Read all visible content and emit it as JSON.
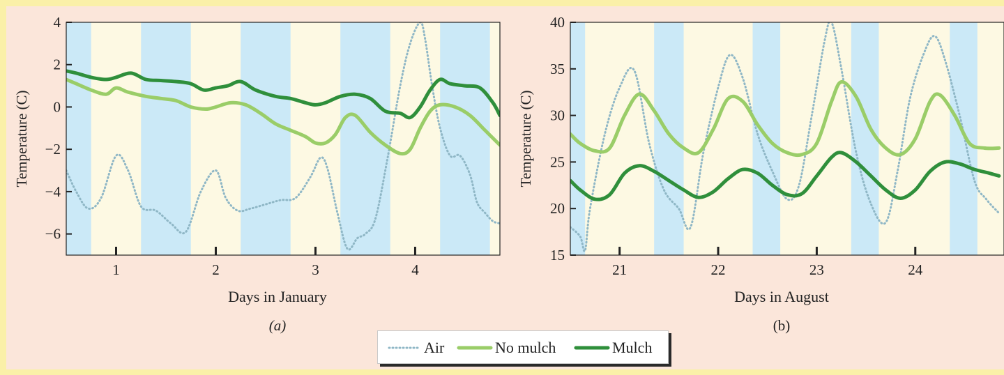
{
  "colors": {
    "page_bg": "#fbe6da",
    "frame": "#faf0a8",
    "night": "#cbe9f7",
    "day": "#fdf9e3",
    "air": "#8fb7c6",
    "no_mulch": "#9acd68",
    "mulch": "#2f8f3b"
  },
  "chart_data": [
    {
      "type": "line",
      "panel_label": "(a)",
      "xlabel": "Days in January",
      "ylabel": "Temperature (C)",
      "xlim": [
        0.5,
        4.85
      ],
      "ylim": [
        -7,
        4
      ],
      "x_ticks": [
        1,
        2,
        3,
        4
      ],
      "x_tick_labels": [
        "1",
        "2",
        "3",
        "4"
      ],
      "y_ticks": [
        4,
        2,
        0,
        -2,
        -4,
        -6
      ],
      "y_tick_labels": [
        "4",
        "2",
        "0",
        "−2",
        "−4",
        "−6"
      ],
      "night_bands": [
        [
          0.5,
          0.75
        ],
        [
          1.25,
          1.75
        ],
        [
          2.25,
          2.75
        ],
        [
          3.25,
          3.75
        ],
        [
          4.25,
          4.75
        ]
      ],
      "series": [
        {
          "name": "Air",
          "style": "dotted",
          "x": [
            0.5,
            0.6,
            0.72,
            0.85,
            1.0,
            1.12,
            1.25,
            1.4,
            1.55,
            1.7,
            1.85,
            2.0,
            2.1,
            2.22,
            2.35,
            2.5,
            2.65,
            2.8,
            2.95,
            3.05,
            3.12,
            3.22,
            3.32,
            3.42,
            3.5,
            3.6,
            3.72,
            3.85,
            3.95,
            4.05,
            4.1,
            4.17,
            4.25,
            4.35,
            4.45,
            4.55,
            4.62,
            4.7,
            4.78,
            4.85
          ],
          "y": [
            -3.0,
            -4.0,
            -4.8,
            -4.3,
            -2.3,
            -3.0,
            -4.7,
            -4.9,
            -5.5,
            -5.9,
            -4.0,
            -3.0,
            -4.3,
            -4.9,
            -4.8,
            -4.6,
            -4.4,
            -4.3,
            -3.3,
            -2.4,
            -2.9,
            -5.0,
            -6.7,
            -6.2,
            -6.0,
            -5.3,
            -2.5,
            1.0,
            3.0,
            4.0,
            3.2,
            1.0,
            -1.0,
            -2.3,
            -2.3,
            -3.2,
            -4.5,
            -5.0,
            -5.4,
            -5.5
          ]
        },
        {
          "name": "No mulch",
          "style": "solid",
          "x": [
            0.5,
            0.6,
            0.75,
            0.9,
            1.0,
            1.12,
            1.3,
            1.45,
            1.6,
            1.75,
            1.9,
            2.0,
            2.15,
            2.3,
            2.45,
            2.6,
            2.75,
            2.9,
            3.0,
            3.1,
            3.2,
            3.3,
            3.4,
            3.55,
            3.7,
            3.85,
            3.95,
            4.05,
            4.15,
            4.25,
            4.4,
            4.55,
            4.7,
            4.85
          ],
          "y": [
            1.3,
            1.1,
            0.8,
            0.6,
            0.9,
            0.7,
            0.5,
            0.4,
            0.3,
            0.0,
            -0.1,
            0.0,
            0.2,
            0.1,
            -0.3,
            -0.8,
            -1.1,
            -1.4,
            -1.7,
            -1.7,
            -1.3,
            -0.5,
            -0.4,
            -1.2,
            -1.8,
            -2.2,
            -2.0,
            -1.0,
            -0.2,
            0.1,
            0.0,
            -0.4,
            -1.1,
            -1.8
          ]
        },
        {
          "name": "Mulch",
          "style": "solid",
          "x": [
            0.5,
            0.6,
            0.75,
            0.9,
            1.0,
            1.15,
            1.3,
            1.45,
            1.6,
            1.75,
            1.88,
            2.0,
            2.12,
            2.25,
            2.4,
            2.6,
            2.75,
            2.9,
            3.0,
            3.1,
            3.25,
            3.4,
            3.55,
            3.7,
            3.85,
            3.95,
            4.05,
            4.15,
            4.25,
            4.35,
            4.5,
            4.65,
            4.78,
            4.85
          ],
          "y": [
            1.7,
            1.6,
            1.4,
            1.3,
            1.4,
            1.6,
            1.3,
            1.25,
            1.2,
            1.1,
            0.8,
            0.9,
            1.0,
            1.2,
            0.8,
            0.5,
            0.4,
            0.2,
            0.1,
            0.2,
            0.5,
            0.6,
            0.4,
            -0.2,
            -0.3,
            -0.5,
            0.0,
            0.8,
            1.3,
            1.1,
            1.0,
            0.9,
            0.2,
            -0.4
          ]
        }
      ]
    },
    {
      "type": "line",
      "panel_label": "(b)",
      "xlabel": "Days in August",
      "ylabel": "Temperature (C)",
      "xlim": [
        20.5,
        24.9
      ],
      "ylim": [
        15,
        40
      ],
      "x_ticks": [
        21,
        22,
        23,
        24
      ],
      "x_tick_labels": [
        "21",
        "22",
        "23",
        "24"
      ],
      "y_ticks": [
        40,
        35,
        30,
        25,
        20,
        15
      ],
      "y_tick_labels": [
        "40",
        "35",
        "30",
        "25",
        "20",
        "15"
      ],
      "night_bands": [
        [
          20.5,
          20.65
        ],
        [
          21.35,
          21.65
        ],
        [
          22.35,
          22.63
        ],
        [
          23.35,
          23.63
        ],
        [
          24.35,
          24.63
        ]
      ],
      "series": [
        {
          "name": "Air",
          "style": "dotted",
          "x": [
            20.5,
            20.6,
            20.65,
            20.7,
            20.85,
            21.0,
            21.15,
            21.3,
            21.45,
            21.6,
            21.72,
            21.85,
            22.0,
            22.12,
            22.25,
            22.4,
            22.55,
            22.7,
            22.82,
            22.95,
            23.08,
            23.15,
            23.25,
            23.4,
            23.55,
            23.7,
            23.82,
            23.95,
            24.1,
            24.2,
            24.3,
            24.45,
            24.6,
            24.72,
            24.85
          ],
          "y": [
            18.0,
            17.0,
            15.5,
            20.0,
            28.0,
            33.0,
            34.8,
            27.0,
            22.0,
            20.0,
            18.0,
            26.0,
            33.0,
            36.5,
            34.0,
            28.0,
            24.0,
            21.0,
            22.5,
            30.0,
            38.0,
            40.0,
            35.0,
            26.0,
            20.5,
            18.5,
            24.0,
            32.0,
            37.0,
            38.5,
            36.0,
            30.0,
            23.0,
            21.0,
            19.5
          ]
        },
        {
          "name": "No mulch",
          "style": "solid",
          "x": [
            20.5,
            20.6,
            20.75,
            20.9,
            21.05,
            21.2,
            21.35,
            21.5,
            21.65,
            21.8,
            21.95,
            22.1,
            22.25,
            22.4,
            22.55,
            22.7,
            22.85,
            23.0,
            23.15,
            23.25,
            23.4,
            23.55,
            23.7,
            23.85,
            24.0,
            24.15,
            24.25,
            24.4,
            24.55,
            24.7,
            24.85
          ],
          "y": [
            28.0,
            27.0,
            26.2,
            26.5,
            30.0,
            32.3,
            30.5,
            28.0,
            26.5,
            26.0,
            28.5,
            31.8,
            31.5,
            29.0,
            27.0,
            26.0,
            25.8,
            27.0,
            31.5,
            33.6,
            32.0,
            28.5,
            26.5,
            25.8,
            27.5,
            31.5,
            32.2,
            30.0,
            27.0,
            26.5,
            26.5
          ]
        },
        {
          "name": "Mulch",
          "style": "solid",
          "x": [
            20.5,
            20.6,
            20.75,
            20.9,
            21.05,
            21.2,
            21.35,
            21.5,
            21.65,
            21.8,
            21.95,
            22.1,
            22.25,
            22.4,
            22.55,
            22.7,
            22.85,
            23.0,
            23.15,
            23.25,
            23.4,
            23.55,
            23.7,
            23.85,
            24.0,
            24.15,
            24.3,
            24.45,
            24.6,
            24.75,
            24.85
          ],
          "y": [
            23.0,
            22.0,
            21.0,
            21.5,
            23.8,
            24.6,
            24.0,
            23.0,
            22.0,
            21.2,
            21.8,
            23.2,
            24.2,
            23.8,
            22.5,
            21.5,
            21.6,
            23.5,
            25.5,
            26.0,
            25.0,
            23.5,
            22.0,
            21.1,
            22.0,
            24.0,
            25.0,
            24.8,
            24.2,
            23.8,
            23.5
          ]
        }
      ]
    }
  ],
  "legend": {
    "items": [
      {
        "label": "Air",
        "series": "Air"
      },
      {
        "label": "No mulch",
        "series": "No mulch"
      },
      {
        "label": "Mulch",
        "series": "Mulch"
      }
    ]
  }
}
